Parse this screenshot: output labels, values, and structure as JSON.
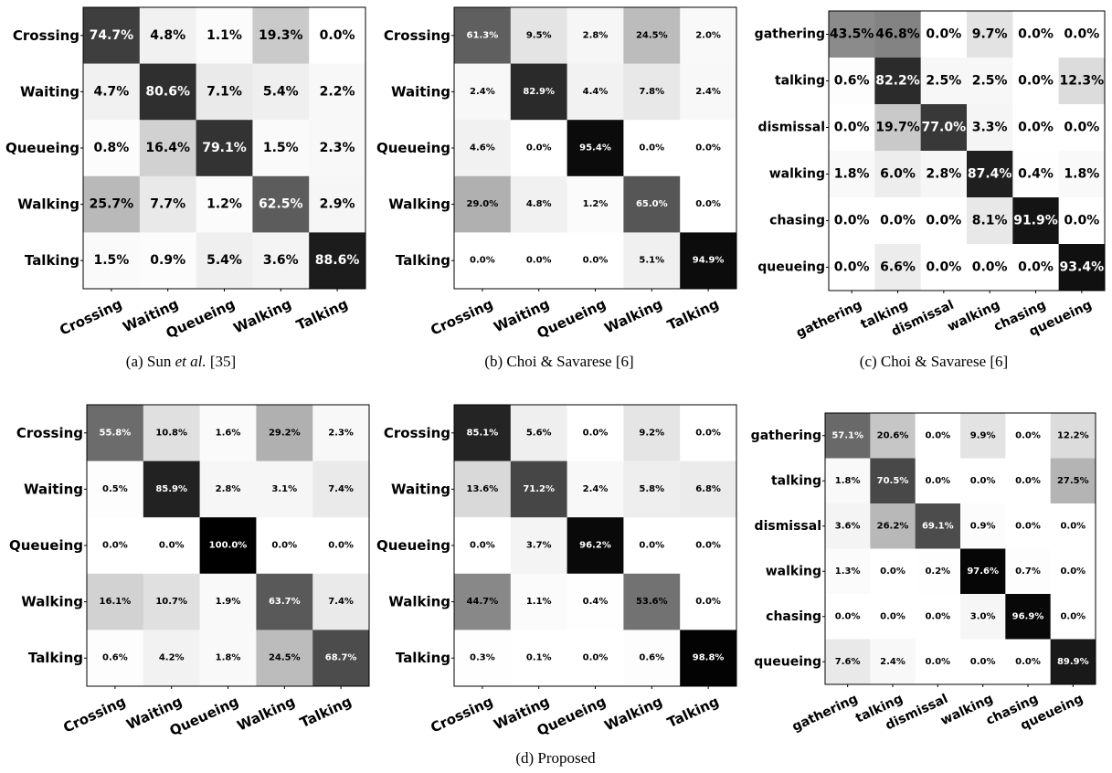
{
  "captions": [
    {
      "pre": "(a) Sun ",
      "em": "et al.",
      "post": " [35]"
    },
    {
      "pre": "(b) Choi & Savarese [6]",
      "em": "",
      "post": ""
    },
    {
      "pre": "(c) Choi & Savarese [6]",
      "em": "",
      "post": ""
    },
    {
      "pre": "(d) Proposed",
      "em": "",
      "post": ""
    }
  ],
  "chart_data": [
    {
      "type": "heatmap",
      "rows": [
        "Crossing",
        "Waiting",
        "Queueing",
        "Walking",
        "Talking"
      ],
      "cols": [
        "Crossing",
        "Waiting",
        "Queueing",
        "Walking",
        "Talking"
      ],
      "values": [
        [
          74.7,
          4.8,
          1.1,
          19.3,
          0.0
        ],
        [
          4.7,
          80.6,
          7.1,
          5.4,
          2.2
        ],
        [
          0.8,
          16.4,
          79.1,
          1.5,
          2.3
        ],
        [
          25.7,
          7.7,
          1.2,
          62.5,
          2.9
        ],
        [
          1.5,
          0.9,
          5.4,
          3.6,
          88.6
        ]
      ],
      "unit": "%",
      "colormap": "grayscale",
      "caption_index": 0
    },
    {
      "type": "heatmap",
      "rows": [
        "Crossing",
        "Waiting",
        "Queueing",
        "Walking",
        "Talking"
      ],
      "cols": [
        "Crossing",
        "Waiting",
        "Queueing",
        "Walking",
        "Talking"
      ],
      "values": [
        [
          61.3,
          9.5,
          2.8,
          24.5,
          2.0
        ],
        [
          2.4,
          82.9,
          4.4,
          7.8,
          2.4
        ],
        [
          4.6,
          0.0,
          95.4,
          0.0,
          0.0
        ],
        [
          29.0,
          4.8,
          1.2,
          65.0,
          0.0
        ],
        [
          0.0,
          0.0,
          0.0,
          5.1,
          94.9
        ]
      ],
      "unit": "%",
      "colormap": "grayscale",
      "caption_index": 1
    },
    {
      "type": "heatmap",
      "rows": [
        "gathering",
        "talking",
        "dismissal",
        "walking",
        "chasing",
        "queueing"
      ],
      "cols": [
        "gathering",
        "talking",
        "dismissal",
        "walking",
        "chasing",
        "queueing"
      ],
      "values": [
        [
          43.5,
          46.8,
          0.0,
          9.7,
          0.0,
          0.0
        ],
        [
          0.6,
          82.2,
          2.5,
          2.5,
          0.0,
          12.3
        ],
        [
          0.0,
          19.7,
          77.0,
          3.3,
          0.0,
          0.0
        ],
        [
          1.8,
          6.0,
          2.8,
          87.4,
          0.4,
          1.8
        ],
        [
          0.0,
          0.0,
          0.0,
          8.1,
          91.9,
          0.0
        ],
        [
          0.0,
          6.6,
          0.0,
          0.0,
          0.0,
          93.4
        ]
      ],
      "unit": "%",
      "colormap": "grayscale",
      "caption_index": 2
    },
    {
      "type": "heatmap",
      "rows": [
        "Crossing",
        "Waiting",
        "Queueing",
        "Walking",
        "Talking"
      ],
      "cols": [
        "Crossing",
        "Waiting",
        "Queueing",
        "Walking",
        "Talking"
      ],
      "values": [
        [
          55.8,
          10.8,
          1.6,
          29.2,
          2.3
        ],
        [
          0.5,
          85.9,
          2.8,
          3.1,
          7.4
        ],
        [
          0.0,
          0.0,
          100.0,
          0.0,
          0.0
        ],
        [
          16.1,
          10.7,
          1.9,
          63.7,
          7.4
        ],
        [
          0.6,
          4.2,
          1.8,
          24.5,
          68.7
        ]
      ],
      "unit": "%",
      "colormap": "grayscale"
    },
    {
      "type": "heatmap",
      "rows": [
        "Crossing",
        "Waiting",
        "Queueing",
        "Walking",
        "Talking"
      ],
      "cols": [
        "Crossing",
        "Waiting",
        "Queueing",
        "Walking",
        "Talking"
      ],
      "values": [
        [
          85.1,
          5.6,
          0.0,
          9.2,
          0.0
        ],
        [
          13.6,
          71.2,
          2.4,
          5.8,
          6.8
        ],
        [
          0.0,
          3.7,
          96.2,
          0.0,
          0.0
        ],
        [
          44.7,
          1.1,
          0.4,
          53.6,
          0.0
        ],
        [
          0.3,
          0.1,
          0.0,
          0.6,
          98.8
        ]
      ],
      "unit": "%",
      "colormap": "grayscale",
      "caption_index": 3
    },
    {
      "type": "heatmap",
      "rows": [
        "gathering",
        "talking",
        "dismissal",
        "walking",
        "chasing",
        "queueing"
      ],
      "cols": [
        "gathering",
        "talking",
        "dismissal",
        "walking",
        "chasing",
        "queueing"
      ],
      "values": [
        [
          57.1,
          20.6,
          0.0,
          9.9,
          0.0,
          12.2
        ],
        [
          1.8,
          70.5,
          0.0,
          0.0,
          0.0,
          27.5
        ],
        [
          3.6,
          26.2,
          69.1,
          0.9,
          0.0,
          0.0
        ],
        [
          1.3,
          0.0,
          0.2,
          97.6,
          0.7,
          0.0
        ],
        [
          0.0,
          0.0,
          0.0,
          3.0,
          96.9,
          0.0
        ],
        [
          7.6,
          2.4,
          0.0,
          0.0,
          0.0,
          89.9
        ]
      ],
      "unit": "%",
      "colormap": "grayscale"
    }
  ]
}
